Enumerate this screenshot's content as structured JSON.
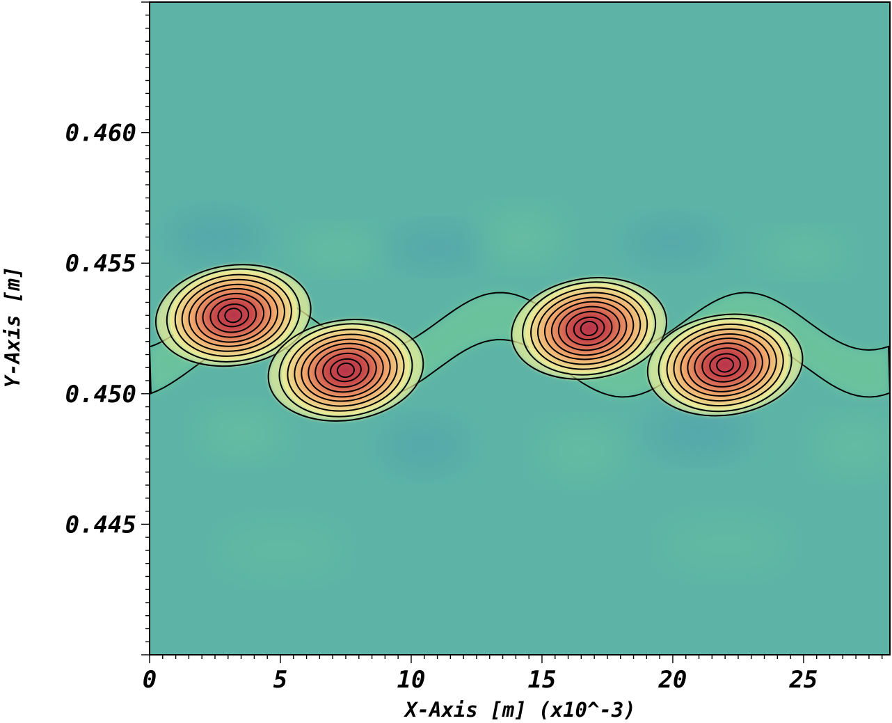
{
  "chart_data": {
    "type": "heatmap",
    "xlabel": "X-Axis [m] (x10^-3)",
    "ylabel": "Y-Axis [m]",
    "xlim": [
      0,
      28.3
    ],
    "ylim": [
      0.44,
      0.465
    ],
    "x_ticks": [
      {
        "value": 0,
        "label": "0"
      },
      {
        "value": 5,
        "label": "5"
      },
      {
        "value": 10,
        "label": "10"
      },
      {
        "value": 15,
        "label": "15"
      },
      {
        "value": 20,
        "label": "20"
      },
      {
        "value": 25,
        "label": "25"
      }
    ],
    "y_ticks": [
      {
        "value": 0.445,
        "label": "0.445"
      },
      {
        "value": 0.45,
        "label": "0.450"
      },
      {
        "value": 0.455,
        "label": "0.455"
      },
      {
        "value": 0.46,
        "label": "0.460"
      }
    ],
    "x_minor_step": 0.5,
    "y_minor_step": 0.0005,
    "colormap": {
      "background": "#5db4a6",
      "low": "#4f9fae",
      "mid": "#6cc49d",
      "light": "#e9ee9a",
      "warm": "#f0a66b",
      "high": "#c94a4a",
      "core": "#b8354a"
    },
    "vortex_centers": [
      {
        "x": 3.2,
        "y": 0.453
      },
      {
        "x": 7.5,
        "y": 0.4509
      },
      {
        "x": 16.8,
        "y": 0.4525
      },
      {
        "x": 22.0,
        "y": 0.4511
      }
    ],
    "contour_lines": true,
    "grid": false
  }
}
